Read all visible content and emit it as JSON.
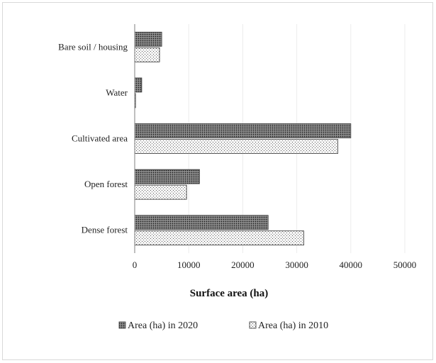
{
  "chart_data": {
    "type": "bar",
    "orientation": "horizontal",
    "categories": [
      "Bare soil / housing",
      "Water",
      "Cultivated area",
      "Open forest",
      "Dense forest"
    ],
    "series": [
      {
        "name": "Area (ha) in 2020",
        "values": [
          5000,
          1300,
          40000,
          12000,
          24700
        ],
        "pattern": "dense-dots",
        "color": "#555555"
      },
      {
        "name": "Area (ha) in 2010",
        "values": [
          4600,
          150,
          37600,
          9600,
          31300
        ],
        "pattern": "sparse-dots",
        "color": "#bbbbbb"
      }
    ],
    "xlabel": "Surface area (ha)",
    "ylabel": "",
    "xlim": [
      0,
      50000
    ],
    "xticks": [
      "0",
      "10000",
      "20000",
      "30000",
      "40000",
      "50000"
    ],
    "grid": "vertical-light",
    "legend_position": "bottom"
  }
}
